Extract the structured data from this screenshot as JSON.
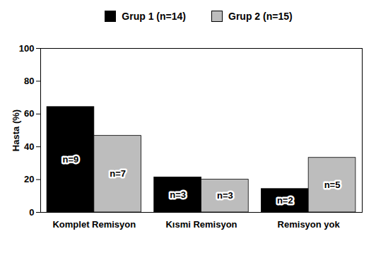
{
  "chart_data": {
    "type": "bar",
    "categories": [
      "Komplet Remisyon",
      "Kısmi Remisyon",
      "Remisyon yok"
    ],
    "series": [
      {
        "name": "Grup 1 (n=14)",
        "color": "#000000",
        "values": [
          64.3,
          21.4,
          14.3
        ],
        "annotations": [
          "n=9",
          "n=3",
          "n=2"
        ]
      },
      {
        "name": "Grup 2 (n=15)",
        "color": "#bdbdbd",
        "values": [
          46.7,
          20,
          33.3
        ],
        "annotations": [
          "n=7",
          "n=3",
          "n=5"
        ]
      }
    ],
    "ylabel": "Hasta (%)",
    "ylim": [
      0,
      100
    ],
    "yticks": [
      0,
      20,
      40,
      60,
      80,
      100
    ],
    "grid": false,
    "legend": "top"
  }
}
